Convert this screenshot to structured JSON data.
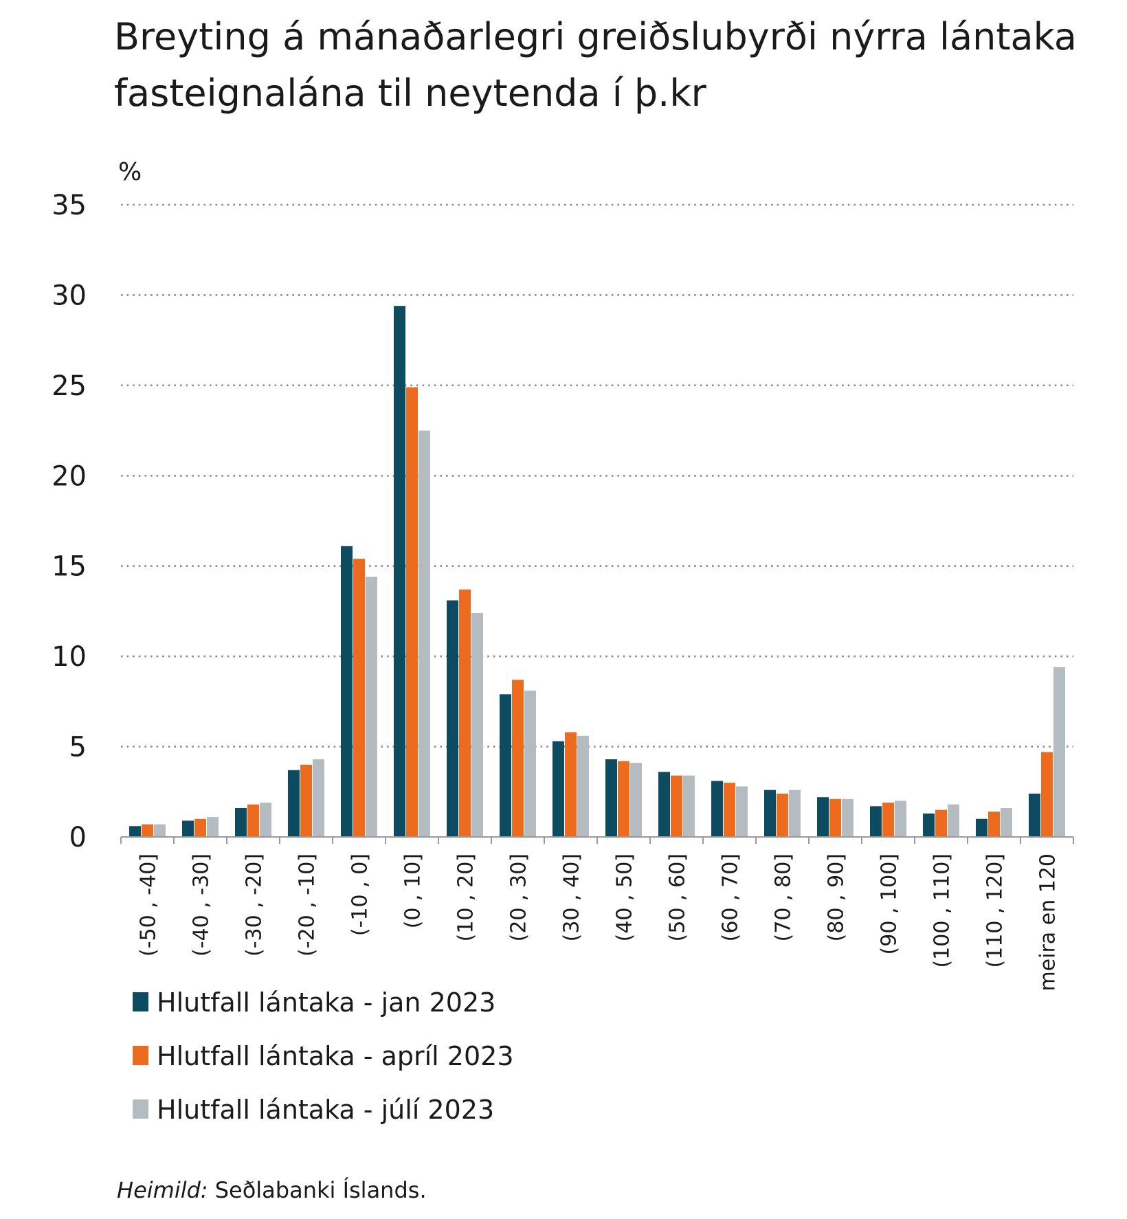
{
  "chart_data": {
    "type": "bar",
    "title": [
      "Breyting á mánaðarlegri greiðslubyrði nýrra lántaka",
      "fasteignalána til neytenda í þ.kr"
    ],
    "ylabel": "%",
    "ylim": [
      0,
      35
    ],
    "yticks": [
      0,
      5,
      10,
      15,
      20,
      25,
      30,
      35
    ],
    "grid": true,
    "legend_position": "bottom-left",
    "categories": [
      "(-50 , -40]",
      "(-40 , -30]",
      "(-30 , -20]",
      "(-20 , -10]",
      "(-10 , 0]",
      "(0 , 10]",
      "(10 , 20]",
      "(20 , 30]",
      "(30 , 40]",
      "(40 , 50]",
      "(50 , 60]",
      "(60 , 70]",
      "(70 , 80]",
      "(80 , 90]",
      "(90 , 100]",
      "(100 , 110]",
      "(110 , 120]",
      "meira en 120"
    ],
    "series": [
      {
        "name": "Hlutfall lántaka - jan 2023",
        "color": "#0d4b61",
        "values": [
          0.6,
          0.9,
          1.6,
          3.7,
          16.1,
          29.4,
          13.1,
          7.9,
          5.3,
          4.3,
          3.6,
          3.1,
          2.6,
          2.2,
          1.7,
          1.3,
          1.0,
          2.4
        ]
      },
      {
        "name": "Hlutfall lántaka - apríl 2023",
        "color": "#ec6b1f",
        "values": [
          0.7,
          1.0,
          1.8,
          4.0,
          15.4,
          24.9,
          13.7,
          8.7,
          5.8,
          4.2,
          3.4,
          3.0,
          2.4,
          2.1,
          1.9,
          1.5,
          1.4,
          4.7
        ]
      },
      {
        "name": "Hlutfall lántaka - júlí 2023",
        "color": "#b4bcc2",
        "values": [
          0.7,
          1.1,
          1.9,
          4.3,
          14.4,
          22.5,
          12.4,
          8.1,
          5.6,
          4.1,
          3.4,
          2.8,
          2.6,
          2.1,
          2.0,
          1.8,
          1.6,
          9.4
        ]
      }
    ],
    "source_label": "Heimild:",
    "source": "Seðlabanki Íslands."
  }
}
